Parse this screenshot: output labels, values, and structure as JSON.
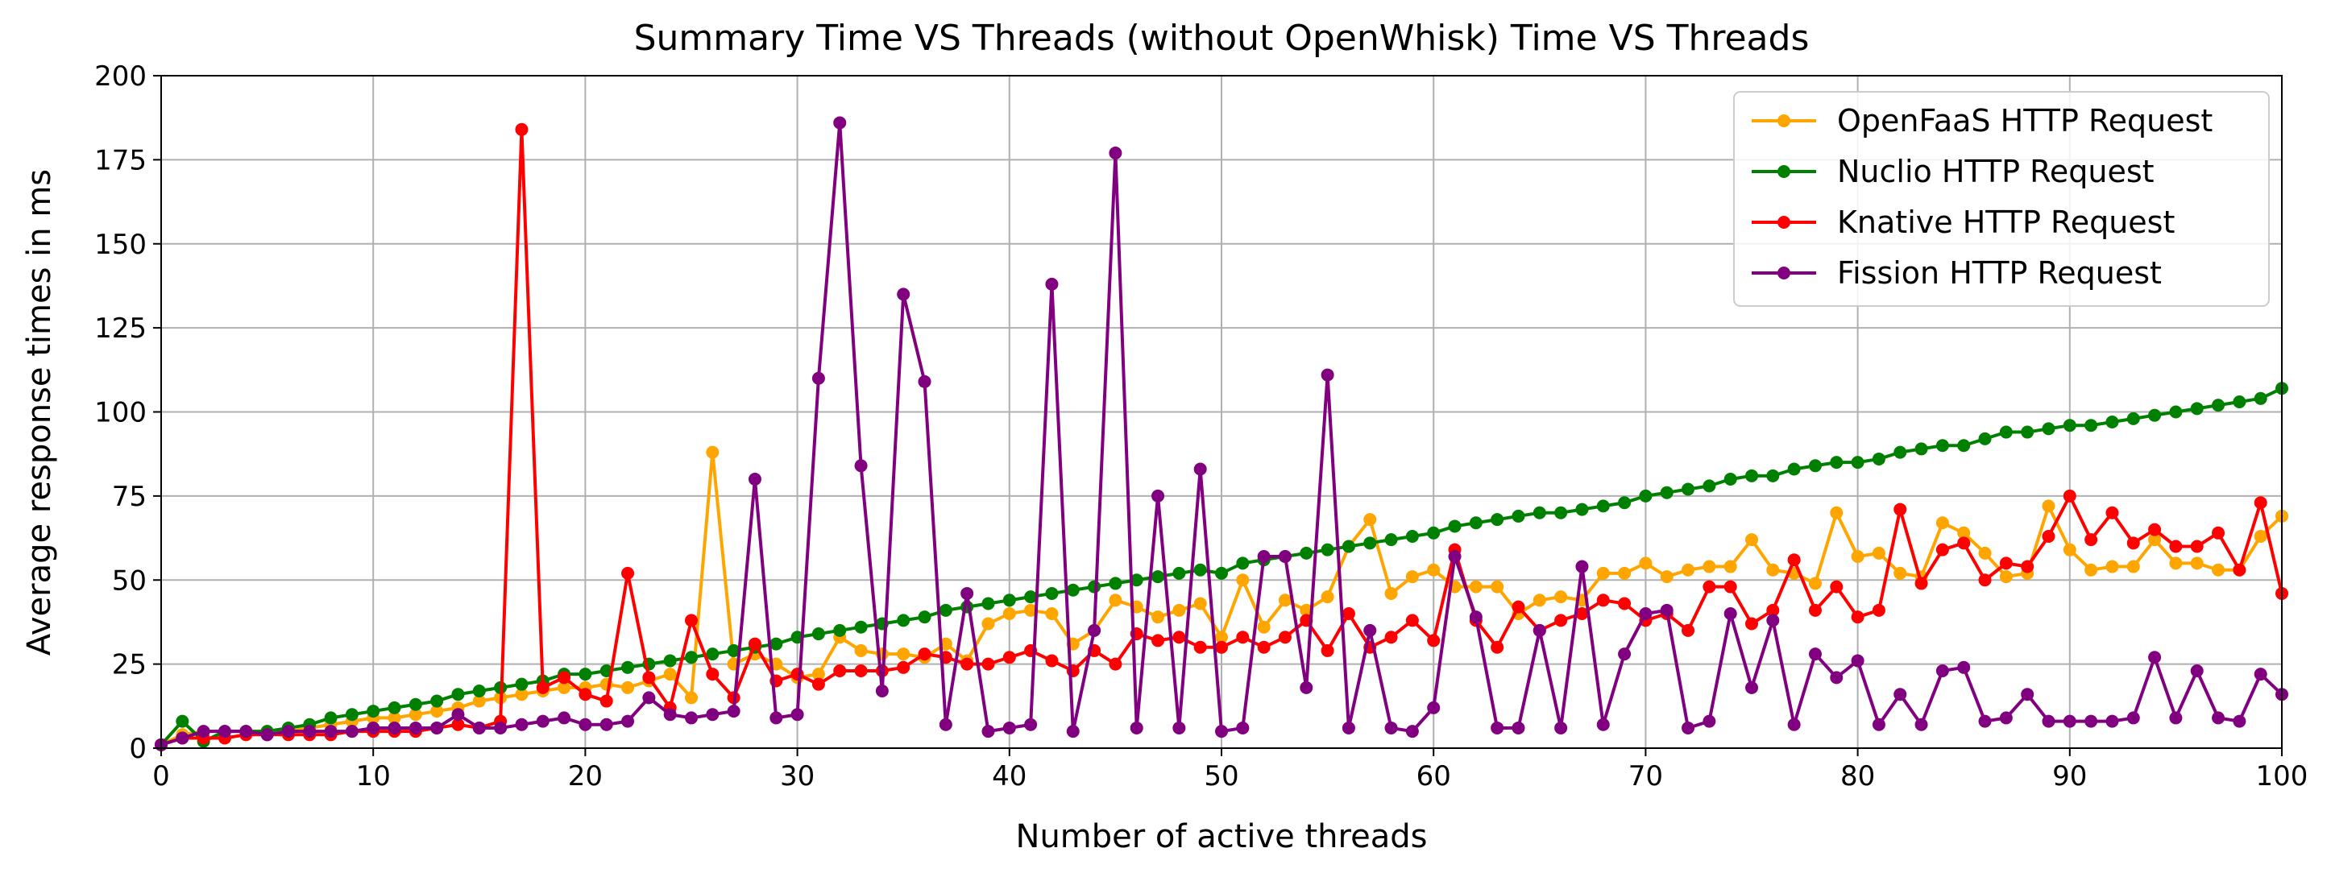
{
  "chart_data": {
    "type": "line",
    "title": "Summary Time VS Threads (without OpenWhisk) Time VS Threads",
    "xlabel": "Number of active threads",
    "ylabel": "Average response times in ms",
    "xlim": [
      0,
      100
    ],
    "ylim": [
      0,
      200
    ],
    "xticks": [
      0,
      10,
      20,
      30,
      40,
      50,
      60,
      70,
      80,
      90,
      100
    ],
    "yticks": [
      0,
      25,
      50,
      75,
      100,
      125,
      150,
      175,
      200
    ],
    "grid": true,
    "legend_position": "top-right",
    "x": [
      0,
      1,
      2,
      3,
      4,
      5,
      6,
      7,
      8,
      9,
      10,
      11,
      12,
      13,
      14,
      15,
      16,
      17,
      18,
      19,
      20,
      21,
      22,
      23,
      24,
      25,
      26,
      27,
      28,
      29,
      30,
      31,
      32,
      33,
      34,
      35,
      36,
      37,
      38,
      39,
      40,
      41,
      42,
      43,
      44,
      45,
      46,
      47,
      48,
      49,
      50,
      51,
      52,
      53,
      54,
      55,
      56,
      57,
      58,
      59,
      60,
      61,
      62,
      63,
      64,
      65,
      66,
      67,
      68,
      69,
      70,
      71,
      72,
      73,
      74,
      75,
      76,
      77,
      78,
      79,
      80,
      81,
      82,
      83,
      84,
      85,
      86,
      87,
      88,
      89,
      90,
      91,
      92,
      93,
      94,
      95,
      96,
      97,
      98,
      99,
      100
    ],
    "series": [
      {
        "name": "OpenFaaS HTTP Request",
        "color": "#FFA500",
        "values": [
          1,
          4,
          5,
          5,
          5,
          5,
          5,
          6,
          7,
          8,
          9,
          9,
          10,
          11,
          12,
          14,
          15,
          16,
          17,
          18,
          18,
          19,
          18,
          20,
          22,
          15,
          88,
          25,
          28,
          25,
          21,
          22,
          33,
          29,
          28,
          28,
          27,
          31,
          26,
          37,
          40,
          41,
          40,
          31,
          35,
          44,
          42,
          39,
          41,
          43,
          33,
          50,
          36,
          44,
          41,
          45,
          60,
          68,
          46,
          51,
          53,
          48,
          48,
          48,
          40,
          44,
          45,
          44,
          52,
          52,
          55,
          51,
          53,
          54,
          54,
          62,
          53,
          52,
          49,
          70,
          57,
          58,
          52,
          51,
          67,
          64,
          58,
          51,
          52,
          72,
          59,
          53,
          54,
          54,
          62,
          55,
          55,
          53,
          53,
          63,
          69
        ]
      },
      {
        "name": "Nuclio HTTP Request",
        "color": "#008000",
        "values": [
          1,
          8,
          2,
          5,
          5,
          5,
          6,
          7,
          9,
          10,
          11,
          12,
          13,
          14,
          16,
          17,
          18,
          19,
          20,
          22,
          22,
          23,
          24,
          25,
          26,
          27,
          28,
          29,
          30,
          31,
          33,
          34,
          35,
          36,
          37,
          38,
          39,
          41,
          42,
          43,
          44,
          45,
          46,
          47,
          48,
          49,
          50,
          51,
          52,
          53,
          52,
          55,
          56,
          57,
          58,
          59,
          60,
          61,
          62,
          63,
          64,
          66,
          67,
          68,
          69,
          70,
          70,
          71,
          72,
          73,
          75,
          76,
          77,
          78,
          80,
          81,
          81,
          83,
          84,
          85,
          85,
          86,
          88,
          89,
          90,
          90,
          92,
          94,
          94,
          95,
          96,
          96,
          97,
          98,
          99,
          100,
          101,
          102,
          103,
          104,
          107
        ]
      },
      {
        "name": "Knative HTTP Request",
        "color": "#FF0000",
        "values": [
          1,
          3,
          3,
          3,
          4,
          4,
          4,
          4,
          4,
          5,
          5,
          5,
          5,
          6,
          7,
          6,
          8,
          184,
          18,
          21,
          16,
          14,
          52,
          21,
          12,
          38,
          22,
          15,
          31,
          20,
          22,
          19,
          23,
          23,
          23,
          24,
          28,
          27,
          25,
          25,
          27,
          29,
          26,
          23,
          29,
          25,
          34,
          32,
          33,
          30,
          30,
          33,
          30,
          33,
          38,
          29,
          40,
          30,
          33,
          38,
          32,
          59,
          38,
          30,
          42,
          35,
          38,
          40,
          44,
          43,
          38,
          40,
          35,
          48,
          48,
          37,
          41,
          56,
          41,
          48,
          39,
          41,
          71,
          49,
          59,
          61,
          50,
          55,
          54,
          63,
          75,
          62,
          70,
          61,
          65,
          60,
          60,
          64,
          53,
          73,
          46
        ]
      },
      {
        "name": "Fission HTTP Request",
        "color": "#800080",
        "values": [
          1,
          3,
          5,
          5,
          5,
          4,
          5,
          5,
          5,
          5,
          6,
          6,
          6,
          6,
          10,
          6,
          6,
          7,
          8,
          9,
          7,
          7,
          8,
          15,
          10,
          9,
          10,
          11,
          80,
          9,
          10,
          110,
          186,
          84,
          17,
          135,
          109,
          7,
          46,
          5,
          6,
          7,
          138,
          5,
          35,
          177,
          6,
          75,
          6,
          83,
          5,
          6,
          57,
          57,
          18,
          111,
          6,
          35,
          6,
          5,
          12,
          57,
          39,
          6,
          6,
          35,
          6,
          54,
          7,
          28,
          40,
          41,
          6,
          8,
          40,
          18,
          38,
          7,
          28,
          21,
          26,
          7,
          16,
          7,
          23,
          24,
          8,
          9,
          16,
          8,
          8,
          8,
          8,
          9,
          27,
          9,
          23,
          9,
          8,
          22,
          16
        ]
      }
    ]
  }
}
